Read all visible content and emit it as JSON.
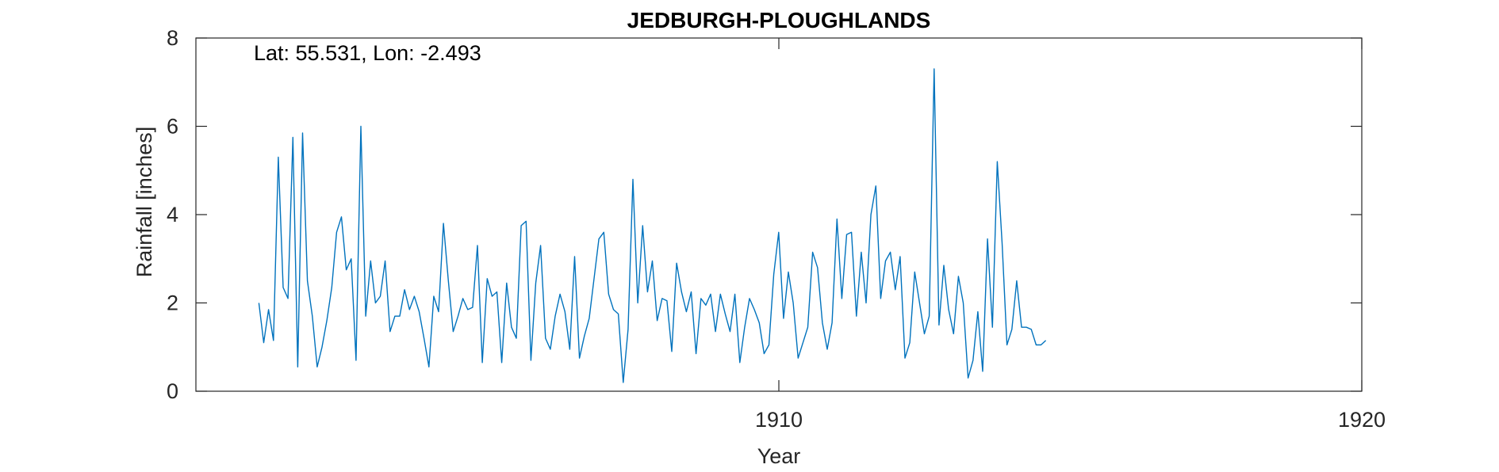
{
  "chart_data": {
    "type": "line",
    "title": "JEDBURGH-PLOUGHLANDS",
    "xlabel": "Year",
    "ylabel": "Rainfall [inches]",
    "annotation": "Lat: 55.531, Lon: -2.493",
    "xlim": [
      1900,
      1920
    ],
    "ylim": [
      0,
      8
    ],
    "xticks": [
      1910,
      1920
    ],
    "yticks": [
      0,
      2,
      4,
      6,
      8
    ],
    "grid": false,
    "line_color": "#0072BD",
    "series": [
      {
        "values": [
          2.0,
          1.1,
          1.85,
          1.15,
          5.3,
          2.35,
          2.1,
          5.75,
          0.55,
          5.85,
          2.5,
          1.7,
          0.55,
          1.0,
          1.6,
          2.35,
          3.6,
          3.95,
          2.75,
          3.0,
          0.7,
          6.0,
          1.7,
          2.95,
          2.0,
          2.15,
          2.95,
          1.35,
          1.7,
          1.7,
          2.3,
          1.85,
          2.15,
          1.8,
          1.2,
          0.55,
          2.15,
          1.8,
          3.8,
          2.5,
          1.35,
          1.7,
          2.1,
          1.85,
          1.9,
          3.3,
          0.65,
          2.55,
          2.15,
          2.25,
          0.65,
          2.45,
          1.45,
          1.2,
          3.75,
          3.85,
          0.7,
          2.45,
          3.3,
          1.2,
          0.95,
          1.7,
          2.2,
          1.8,
          0.95,
          3.05,
          0.75,
          1.25,
          1.65,
          2.55,
          3.45,
          3.6,
          2.2,
          1.85,
          1.75,
          0.2,
          1.4,
          4.8,
          2.0,
          3.75,
          2.25,
          2.95,
          1.6,
          2.1,
          2.05,
          0.9,
          2.9,
          2.25,
          1.8,
          2.25,
          0.85,
          2.1,
          1.95,
          2.2,
          1.35,
          2.2,
          1.75,
          1.35,
          2.2,
          0.65,
          1.45,
          2.1,
          1.85,
          1.55,
          0.85,
          1.05,
          2.65,
          3.6,
          1.65,
          2.7,
          2.0,
          0.75,
          1.1,
          1.45,
          3.15,
          2.8,
          1.55,
          0.95,
          1.55,
          3.9,
          2.1,
          3.55,
          3.6,
          1.7,
          3.15,
          2.0,
          4.0,
          4.65,
          2.1,
          2.95,
          3.15,
          2.3,
          3.05,
          0.75,
          1.1,
          2.7,
          2.0,
          1.3,
          1.7,
          7.3,
          1.5,
          2.85,
          1.85,
          1.3,
          2.6,
          2.0,
          0.3,
          0.7,
          1.8,
          0.45,
          3.45,
          1.45,
          5.2,
          3.35,
          1.05,
          1.4,
          2.5,
          1.45,
          1.45,
          1.4,
          1.05,
          1.05,
          1.15
        ],
        "x_start": 1901.08,
        "x_step": 0.0833333
      }
    ]
  }
}
